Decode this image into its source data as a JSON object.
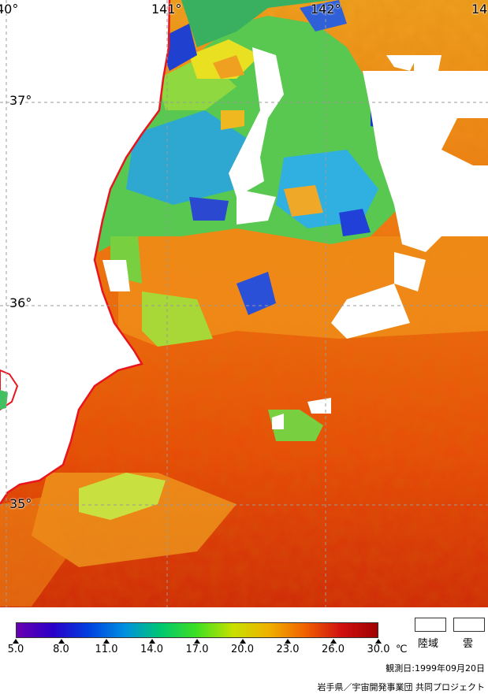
{
  "map": {
    "longitude_labels": [
      "40°",
      "141°",
      "142°",
      "14"
    ],
    "latitude_labels": [
      "37°",
      "36°",
      "35°"
    ],
    "land_color": "#ffffff",
    "cloud_color": "#ffffff",
    "coastline_color": "#e8141e",
    "grid_style": "dashed gray"
  },
  "colorbar": {
    "ticks": [
      "5.0",
      "8.0",
      "11.0",
      "14.0",
      "17.0",
      "20.0",
      "23.0",
      "26.0",
      "30.0"
    ],
    "unit": "℃",
    "colors": [
      "#6a00b0",
      "#2a00c8",
      "#0040e0",
      "#0090e0",
      "#00c870",
      "#40e020",
      "#c8e000",
      "#f0b000",
      "#f06000",
      "#d01010",
      "#a00000"
    ]
  },
  "legend": {
    "land_label": "陸域",
    "cloud_label": "雲"
  },
  "footer": {
    "observation_date": "観測日:1999年09月20日",
    "credit": "岩手県／宇宙開発事業団 共同プロジェクト"
  }
}
